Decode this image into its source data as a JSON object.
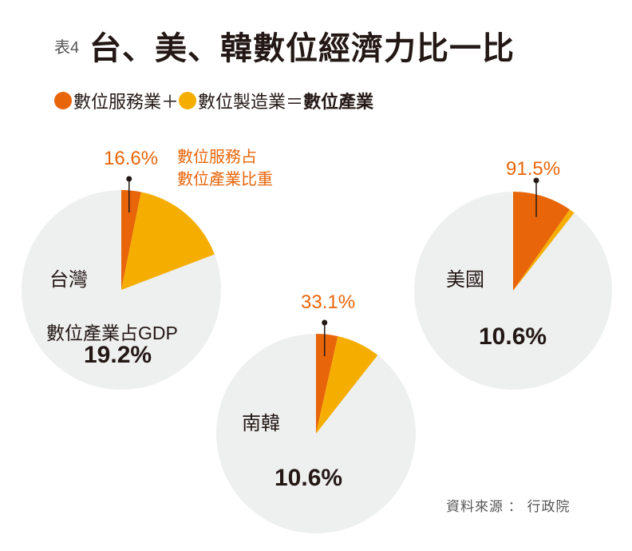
{
  "title_prefix": "表4",
  "title": "台、美、韓數位經濟力比一比",
  "legend": {
    "service_label": "數位服務業",
    "plus": "＋",
    "manufacturing_label": "數位製造業",
    "equals": "＝",
    "industry_label": "數位產業"
  },
  "annotation": {
    "line1": "數位服務占",
    "line2": "數位產業比重"
  },
  "gdp_label": "數位產業占GDP",
  "source": "資料來源 ： 行政院",
  "colors": {
    "service": "#E8650A",
    "manufacturing": "#F5AE00",
    "rest": "#EEEFEF",
    "text_accent": "#E8650A"
  },
  "chart_data": {
    "type": "pie",
    "description_units": "percent",
    "pies": [
      {
        "name": "台灣",
        "digital_industry_share_of_gdp": 19.2,
        "digital_industry_label": "19.2%",
        "service_share_of_digital": 16.6,
        "service_label": "16.6%"
      },
      {
        "name": "南韓",
        "digital_industry_share_of_gdp": 10.6,
        "digital_industry_label": "10.6%",
        "service_share_of_digital": 33.1,
        "service_label": "33.1%"
      },
      {
        "name": "美國",
        "digital_industry_share_of_gdp": 10.6,
        "digital_industry_label": "10.6%",
        "service_share_of_digital": 91.5,
        "service_label": "91.5%"
      }
    ]
  }
}
